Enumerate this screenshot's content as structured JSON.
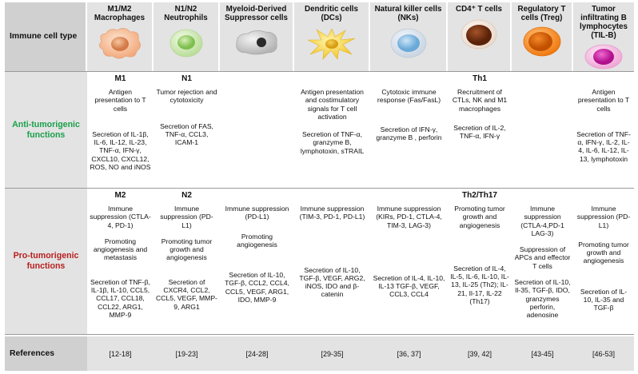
{
  "corner": "Immune cell type",
  "rows": {
    "anti": "Anti-tumorigenic functions",
    "pro": "Pro-tumorigenic functions",
    "refs": "References"
  },
  "colors": {
    "anti": "#19a04a",
    "pro": "#b81e1e",
    "header_bg": "#e3e3e3"
  },
  "cells": [
    {
      "name": "M1/M2 Macrophages",
      "icon": "macrophage-icon",
      "anti": {
        "sub": "M1",
        "p1": "Antigen presentation to T cells",
        "p2": "",
        "p3": "Secretion of IL-1β, IL-6, IL-12, IL-23, TNF-α, IFN-γ, CXCL10, CXCL12, ROS, NO and iNOS"
      },
      "pro": {
        "sub": "M2",
        "p1": "Immune suppression (CTLA-4, PD-1)",
        "p2": "Promoting angiogenesis and metastasis",
        "p3": "Secretion of TNF-β, IL-1β, IL-10, CCL5, CCL17, CCL18, CCL22, ARG1, MMP-9"
      },
      "ref": "[12-18]"
    },
    {
      "name": "N1/N2 Neutrophils",
      "icon": "neutrophil-icon",
      "anti": {
        "sub": "N1",
        "p1": "Tumor rejection and cytotoxicity",
        "p2": "",
        "p3": "Secretion of FAS, TNF-α, CCL3, ICAM-1"
      },
      "pro": {
        "sub": "N2",
        "p1": "Immune suppression (PD-L1)",
        "p2": "Promoting tumor growth and angiogenesis",
        "p3": "Secretion of CXCR4, CCL2, CCL5, VEGF, MMP-9, ARG1"
      },
      "ref": "[19-23]"
    },
    {
      "name": "Myeloid-Derived Suppressor cells",
      "icon": "mdsc-icon",
      "anti": {
        "sub": "",
        "p1": "",
        "p2": "",
        "p3": ""
      },
      "pro": {
        "sub": "",
        "p1": "Immune suppression (PD-L1)",
        "p2": "Promoting angiogenesis",
        "p3": "Secretion of IL-10, TGF-β, CCL2, CCL4, CCL5, VEGF, ARG1, IDO, MMP-9"
      },
      "ref": "[24-28]"
    },
    {
      "name": "Dendritic cells (DCs)",
      "icon": "dendritic-cell-icon",
      "anti": {
        "sub": "",
        "p1": "Antigen presentation and costimulatory signals for T cell activation",
        "p2": "",
        "p3": "Secretion of TNF-α, granzyme B, lymphotoxin, sTRAIL"
      },
      "pro": {
        "sub": "",
        "p1": "Immune suppression (TIM-3, PD-1, PD-L1)",
        "p2": "",
        "p3": "Secretion of IL-10, TGF-β, VEGF, ARG2, iNOS, IDO and β-catenin"
      },
      "ref": "[29-35]"
    },
    {
      "name": "Natural killer cells (NKs)",
      "icon": "nk-cell-icon",
      "anti": {
        "sub": "",
        "p1": "Cytotoxic immune response (Fas/FasL)",
        "p2": "",
        "p3": "Secretion of IFN-γ, granzyme B , perforin"
      },
      "pro": {
        "sub": "",
        "p1": "Immune suppression (KIRs, PD-1, CTLA-4, TIM-3, LAG-3)",
        "p2": "",
        "p3": "Secretion of IL-4, IL-10, IL-13 TGF-β, VEGF, CCL3, CCL4"
      },
      "ref": "[36, 37]"
    },
    {
      "name": "CD4⁺ T cells",
      "icon": "cd4-t-cell-icon",
      "anti": {
        "sub": "Th1",
        "p1": "Recruitment of CTLs, NK and M1 macrophages",
        "p2": "",
        "p3": "Secretion of IL-2, TNF-α, IFN-γ"
      },
      "pro": {
        "sub": "Th2/Th17",
        "p1": "Promoting tumor growth and angiogenesis",
        "p2": "",
        "p3": "Secretion of IL-4, IL-5, IL-6, IL-10, IL-13, IL-25 (Th2); IL-21, Il-17, IL-22 (Th17)"
      },
      "ref": "[39, 42]"
    },
    {
      "name": "Regulatory T cells (Treg)",
      "icon": "treg-cell-icon",
      "anti": {
        "sub": "",
        "p1": "",
        "p2": "",
        "p3": ""
      },
      "pro": {
        "sub": "",
        "p1": "Immune suppression (CTLA-4,PD-1 LAG-3)",
        "p2": "Suppression of APCs and effector T cells",
        "p3": "Secretion of IL-10, Il-35, TGF-β, IDO, granzymes perforin, adenosine"
      },
      "ref": "[43-45]"
    },
    {
      "name": "Tumor infiltrating B lymphocytes (TIL-B)",
      "icon": "til-b-cell-icon",
      "anti": {
        "sub": "",
        "p1": "Antigen presentation to T cells",
        "p2": "",
        "p3": "Secretion of TNF-α, IFN-γ, IL-2, IL-4, IL-6, IL-12, IL-13, lymphotoxin"
      },
      "pro": {
        "sub": "",
        "p1": "Immune suppression (PD-L1)",
        "p2": "Promoting tumor growth and angiogenesis",
        "p3": "Secretion of IL-10, IL-35 and TGF-β"
      },
      "ref": "[46-53]"
    }
  ]
}
